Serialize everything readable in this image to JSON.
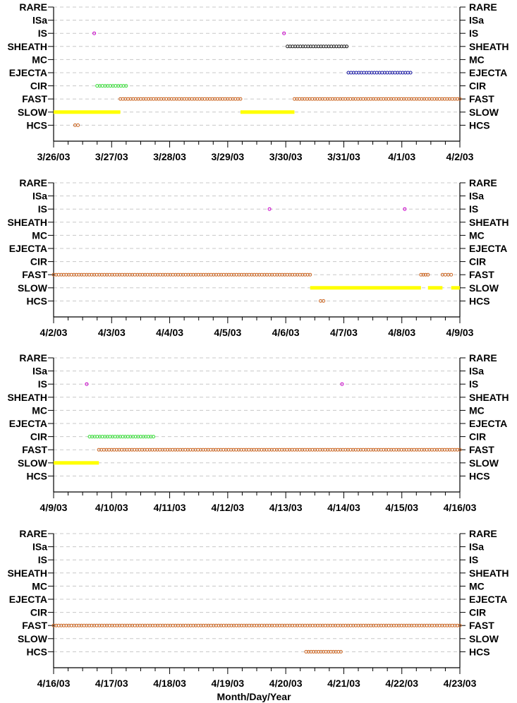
{
  "chart_data": {
    "type": "scatter",
    "xlabel": "Month/Day/Year",
    "categories": [
      "RARE",
      "ISa",
      "IS",
      "SHEATH",
      "MC",
      "EJECTA",
      "CIR",
      "FAST",
      "SLOW",
      "HCS"
    ],
    "series_colors": {
      "IS": "#cc00cc",
      "SHEATH": "#222222",
      "EJECTA": "#1a1aa6",
      "CIR": "#33dd33",
      "FAST": "#cc6622",
      "SLOW": "#ffff00",
      "HCS": "#cc6622"
    },
    "grid": "horizontal dashed",
    "panels": [
      {
        "xlim": [
          "3/26/03",
          "4/2/03"
        ],
        "tick_labels": [
          "3/26/03",
          "3/27/03",
          "3/28/03",
          "3/29/03",
          "3/30/03",
          "3/31/03",
          "4/1/03",
          "4/2/03"
        ],
        "intervals": [
          {
            "category": "IS",
            "start": 0.7,
            "end": 0.7
          },
          {
            "category": "IS",
            "start": 3.97,
            "end": 3.97
          },
          {
            "category": "SHEATH",
            "start": 4.03,
            "end": 5.05
          },
          {
            "category": "EJECTA",
            "start": 5.08,
            "end": 6.15
          },
          {
            "category": "CIR",
            "start": 0.75,
            "end": 1.25
          },
          {
            "category": "FAST",
            "start": 1.15,
            "end": 3.22
          },
          {
            "category": "FAST",
            "start": 4.15,
            "end": 7.0
          },
          {
            "category": "SLOW",
            "start": 0.0,
            "end": 1.15
          },
          {
            "category": "SLOW",
            "start": 3.22,
            "end": 4.15
          },
          {
            "category": "HCS",
            "start": 0.37,
            "end": 0.42
          }
        ]
      },
      {
        "xlim": [
          "4/2/03",
          "4/9/03"
        ],
        "tick_labels": [
          "4/2/03",
          "4/3/03",
          "4/4/03",
          "4/5/03",
          "4/6/03",
          "4/7/03",
          "4/8/03",
          "4/9/03"
        ],
        "intervals": [
          {
            "category": "IS",
            "start": 3.72,
            "end": 3.72
          },
          {
            "category": "IS",
            "start": 6.05,
            "end": 6.05
          },
          {
            "category": "FAST",
            "start": 0.0,
            "end": 4.42
          },
          {
            "category": "FAST",
            "start": 6.33,
            "end": 6.45
          },
          {
            "category": "FAST",
            "start": 6.7,
            "end": 6.85
          },
          {
            "category": "SLOW",
            "start": 4.42,
            "end": 6.33
          },
          {
            "category": "SLOW",
            "start": 6.45,
            "end": 6.7
          },
          {
            "category": "SLOW",
            "start": 6.85,
            "end": 7.0
          },
          {
            "category": "HCS",
            "start": 4.6,
            "end": 4.65
          }
        ]
      },
      {
        "xlim": [
          "4/9/03",
          "4/16/03"
        ],
        "tick_labels": [
          "4/9/03",
          "4/10/03",
          "4/11/03",
          "4/12/03",
          "4/13/03",
          "4/14/03",
          "4/15/03",
          "4/16/03"
        ],
        "intervals": [
          {
            "category": "IS",
            "start": 0.57,
            "end": 0.57
          },
          {
            "category": "IS",
            "start": 4.97,
            "end": 4.97
          },
          {
            "category": "CIR",
            "start": 0.62,
            "end": 1.72
          },
          {
            "category": "FAST",
            "start": 0.78,
            "end": 7.0
          },
          {
            "category": "SLOW",
            "start": 0.0,
            "end": 0.78
          }
        ]
      },
      {
        "xlim": [
          "4/16/03",
          "4/23/03"
        ],
        "tick_labels": [
          "4/16/03",
          "4/17/03",
          "4/18/03",
          "4/19/03",
          "4/20/03",
          "4/21/03",
          "4/22/03",
          "4/23/03"
        ],
        "intervals": [
          {
            "category": "FAST",
            "start": 0.0,
            "end": 7.0
          },
          {
            "category": "HCS",
            "start": 4.35,
            "end": 4.95
          }
        ]
      }
    ]
  }
}
